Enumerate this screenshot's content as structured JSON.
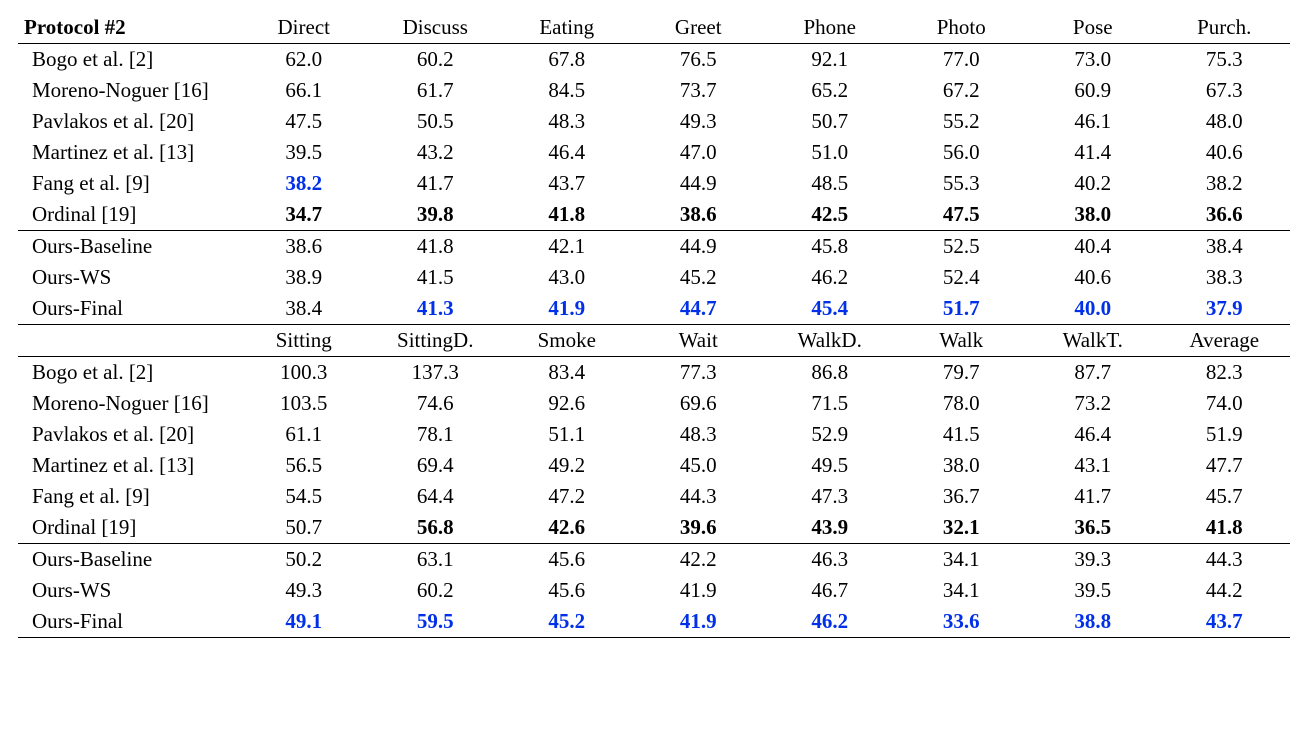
{
  "protocol_label": "Protocol #2",
  "highlight_color": "#0030e8",
  "text_color": "#000000",
  "background_color": "#ffffff",
  "font_family": "Times New Roman",
  "base_font_size_pt": 16,
  "sections": [
    {
      "columns": [
        "Direct",
        "Discuss",
        "Eating",
        "Greet",
        "Phone",
        "Photo",
        "Pose",
        "Purch."
      ],
      "groups": [
        {
          "rows": [
            {
              "method": "Bogo et al. [2]",
              "values": [
                "62.0",
                "60.2",
                "67.8",
                "76.5",
                "92.1",
                "77.0",
                "73.0",
                "75.3"
              ],
              "style": [
                "",
                "",
                "",
                "",
                "",
                "",
                "",
                ""
              ]
            },
            {
              "method": "Moreno-Noguer [16]",
              "values": [
                "66.1",
                "61.7",
                "84.5",
                "73.7",
                "65.2",
                "67.2",
                "60.9",
                "67.3"
              ],
              "style": [
                "",
                "",
                "",
                "",
                "",
                "",
                "",
                ""
              ]
            },
            {
              "method": "Pavlakos et al. [20]",
              "values": [
                "47.5",
                "50.5",
                "48.3",
                "49.3",
                "50.7",
                "55.2",
                "46.1",
                "48.0"
              ],
              "style": [
                "",
                "",
                "",
                "",
                "",
                "",
                "",
                ""
              ]
            },
            {
              "method": "Martinez et al. [13]",
              "values": [
                "39.5",
                "43.2",
                "46.4",
                "47.0",
                "51.0",
                "56.0",
                "41.4",
                "40.6"
              ],
              "style": [
                "",
                "",
                "",
                "",
                "",
                "",
                "",
                ""
              ]
            },
            {
              "method": "Fang et al. [9]",
              "values": [
                "38.2",
                "41.7",
                "43.7",
                "44.9",
                "48.5",
                "55.3",
                "40.2",
                "38.2"
              ],
              "style": [
                "blue bold",
                "",
                "",
                "",
                "",
                "",
                "",
                ""
              ]
            },
            {
              "method": "Ordinal [19]",
              "values": [
                "34.7",
                "39.8",
                "41.8",
                "38.6",
                "42.5",
                "47.5",
                "38.0",
                "36.6"
              ],
              "style": [
                "bold",
                "bold",
                "bold",
                "bold",
                "bold",
                "bold",
                "bold",
                "bold"
              ]
            }
          ]
        },
        {
          "rows": [
            {
              "method": "Ours-Baseline",
              "values": [
                "38.6",
                "41.8",
                "42.1",
                "44.9",
                "45.8",
                "52.5",
                "40.4",
                "38.4"
              ],
              "style": [
                "",
                "",
                "",
                "",
                "",
                "",
                "",
                ""
              ]
            },
            {
              "method": "Ours-WS",
              "values": [
                "38.9",
                "41.5",
                "43.0",
                "45.2",
                "46.2",
                "52.4",
                "40.6",
                "38.3"
              ],
              "style": [
                "",
                "",
                "",
                "",
                "",
                "",
                "",
                ""
              ]
            },
            {
              "method": "Ours-Final",
              "values": [
                "38.4",
                "41.3",
                "41.9",
                "44.7",
                "45.4",
                "51.7",
                "40.0",
                "37.9"
              ],
              "style": [
                "",
                "blue bold",
                "blue bold",
                "blue bold",
                "blue bold",
                "blue bold",
                "blue bold",
                "blue bold"
              ]
            }
          ]
        }
      ]
    },
    {
      "columns": [
        "Sitting",
        "SittingD.",
        "Smoke",
        "Wait",
        "WalkD.",
        "Walk",
        "WalkT.",
        "Average"
      ],
      "groups": [
        {
          "rows": [
            {
              "method": "Bogo et al. [2]",
              "values": [
                "100.3",
                "137.3",
                "83.4",
                "77.3",
                "86.8",
                "79.7",
                "87.7",
                "82.3"
              ],
              "style": [
                "",
                "",
                "",
                "",
                "",
                "",
                "",
                ""
              ]
            },
            {
              "method": "Moreno-Noguer [16]",
              "values": [
                "103.5",
                "74.6",
                "92.6",
                "69.6",
                "71.5",
                "78.0",
                "73.2",
                "74.0"
              ],
              "style": [
                "",
                "",
                "",
                "",
                "",
                "",
                "",
                ""
              ]
            },
            {
              "method": "Pavlakos et al. [20]",
              "values": [
                "61.1",
                "78.1",
                "51.1",
                "48.3",
                "52.9",
                "41.5",
                "46.4",
                "51.9"
              ],
              "style": [
                "",
                "",
                "",
                "",
                "",
                "",
                "",
                ""
              ]
            },
            {
              "method": "Martinez et al. [13]",
              "values": [
                "56.5",
                "69.4",
                "49.2",
                "45.0",
                "49.5",
                "38.0",
                "43.1",
                "47.7"
              ],
              "style": [
                "",
                "",
                "",
                "",
                "",
                "",
                "",
                ""
              ]
            },
            {
              "method": "Fang et al. [9]",
              "values": [
                "54.5",
                "64.4",
                "47.2",
                "44.3",
                "47.3",
                "36.7",
                "41.7",
                "45.7"
              ],
              "style": [
                "",
                "",
                "",
                "",
                "",
                "",
                "",
                ""
              ]
            },
            {
              "method": "Ordinal [19]",
              "values": [
                "50.7",
                "56.8",
                "42.6",
                "39.6",
                "43.9",
                "32.1",
                "36.5",
                "41.8"
              ],
              "style": [
                "",
                "bold",
                "bold",
                "bold",
                "bold",
                "bold",
                "bold",
                "bold"
              ]
            }
          ]
        },
        {
          "rows": [
            {
              "method": "Ours-Baseline",
              "values": [
                "50.2",
                "63.1",
                "45.6",
                "42.2",
                "46.3",
                "34.1",
                "39.3",
                "44.3"
              ],
              "style": [
                "",
                "",
                "",
                "",
                "",
                "",
                "",
                ""
              ]
            },
            {
              "method": "Ours-WS",
              "values": [
                "49.3",
                "60.2",
                "45.6",
                "41.9",
                "46.7",
                "34.1",
                "39.5",
                "44.2"
              ],
              "style": [
                "",
                "",
                "",
                "",
                "",
                "",
                "",
                ""
              ]
            },
            {
              "method": "Ours-Final",
              "values": [
                "49.1",
                "59.5",
                "45.2",
                "41.9",
                "46.2",
                "33.6",
                "38.8",
                "43.7"
              ],
              "style": [
                "blue bold",
                "blue bold",
                "blue bold",
                "blue bold",
                "blue bold",
                "blue bold",
                "blue bold",
                "blue bold"
              ]
            }
          ]
        }
      ]
    }
  ]
}
